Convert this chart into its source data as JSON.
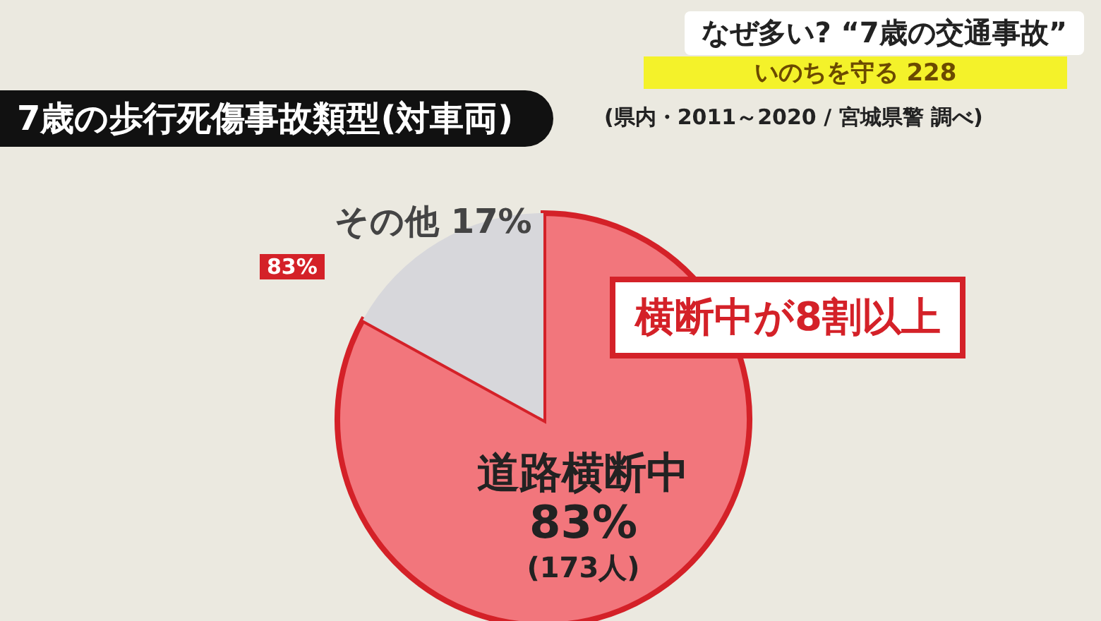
{
  "chart_data": {
    "type": "pie",
    "title": "7歳の歩行死傷事故類型(対車両)",
    "subtitle": "(県内・2011～2020 / 宮城県警 調べ)",
    "categories": [
      "道路横断中",
      "その他"
    ],
    "values": [
      83,
      17
    ],
    "value_labels": [
      "83%\n(173人)",
      "17%"
    ],
    "colors": [
      "#f2767c",
      "#d7d7db"
    ],
    "annotations": [
      "なぜ多い? “7歳の交通事故”",
      "いのちを守る 228",
      "横断中が8割以上",
      "83%"
    ]
  }
}
